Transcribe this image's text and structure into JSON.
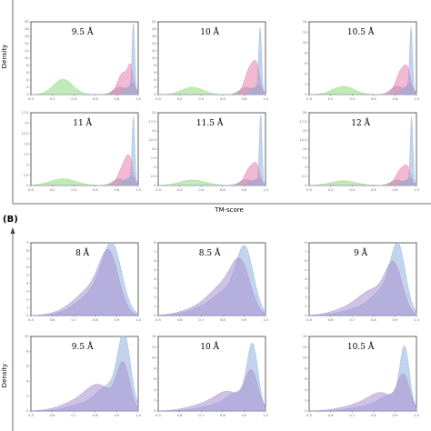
{
  "figure": {
    "section_label": "(B)",
    "xlabel_top": "TM-score",
    "ylabel_top": "Density",
    "ylabel_bottom": "Density"
  },
  "colors": {
    "blue": "#8fb0dc",
    "pink": "#e57fae",
    "green": "#8ed97a",
    "gray": "#999999",
    "purple": "#a98fd0"
  },
  "chart_data": [
    {
      "id": "A1",
      "type": "area",
      "title": "9.5 Å",
      "xlim": [
        0,
        1
      ],
      "ylim": [
        0,
        20
      ],
      "x_ticks": [
        "0.0",
        "0.2",
        "0.4",
        "0.6",
        "0.8",
        "1.0"
      ],
      "y_ticks": [
        "0",
        "2",
        "4",
        "6",
        "8",
        "10",
        "12",
        "14",
        "16",
        "18",
        "20"
      ],
      "series": [
        {
          "color": "green",
          "peaks": [
            [
              0.3,
              0.09,
              4.2
            ]
          ]
        },
        {
          "color": "gray",
          "peaks": [
            [
              0.83,
              0.06,
              2.1
            ],
            [
              0.95,
              0.03,
              2.8
            ]
          ]
        },
        {
          "color": "pink",
          "peaks": [
            [
              0.86,
              0.05,
              6.0
            ],
            [
              0.93,
              0.025,
              6.0
            ]
          ]
        },
        {
          "color": "blue",
          "peaks": [
            [
              0.955,
              0.012,
              19.0
            ],
            [
              0.9,
              0.04,
              2.0
            ]
          ]
        }
      ]
    },
    {
      "id": "A2",
      "type": "area",
      "title": "10 Å",
      "xlim": [
        0,
        1
      ],
      "ylim": [
        0,
        20
      ],
      "x_ticks": [
        "0.0",
        "0.2",
        "0.4",
        "0.6",
        "0.8",
        "1.0"
      ],
      "y_ticks": [
        "0",
        "2",
        "4",
        "6",
        "8",
        "10",
        "12",
        "14",
        "16",
        "18",
        "20"
      ],
      "series": [
        {
          "color": "green",
          "peaks": [
            [
              0.32,
              0.1,
              2.0
            ]
          ]
        },
        {
          "color": "gray",
          "peaks": [
            [
              0.82,
              0.06,
              2.0
            ],
            [
              0.94,
              0.03,
              2.4
            ]
          ]
        },
        {
          "color": "pink",
          "peaks": [
            [
              0.86,
              0.05,
              7.5
            ],
            [
              0.92,
              0.03,
              5.0
            ]
          ]
        },
        {
          "color": "blue",
          "peaks": [
            [
              0.95,
              0.013,
              17.5
            ],
            [
              0.9,
              0.04,
              2.0
            ]
          ]
        }
      ]
    },
    {
      "id": "A3",
      "type": "area",
      "title": "10.5 Å",
      "xlim": [
        0,
        1
      ],
      "ylim": [
        0,
        14
      ],
      "x_ticks": [
        "0.0",
        "0.2",
        "0.4",
        "0.6",
        "0.8",
        "1.0"
      ],
      "y_ticks": [
        "0",
        "2",
        "4",
        "6",
        "8",
        "10",
        "12",
        "14"
      ],
      "series": [
        {
          "color": "green",
          "peaks": [
            [
              0.32,
              0.1,
              1.6
            ]
          ]
        },
        {
          "color": "gray",
          "peaks": [
            [
              0.82,
              0.06,
              1.6
            ],
            [
              0.94,
              0.03,
              2.0
            ]
          ]
        },
        {
          "color": "pink",
          "peaks": [
            [
              0.86,
              0.05,
              4.6
            ],
            [
              0.92,
              0.03,
              3.0
            ]
          ]
        },
        {
          "color": "blue",
          "peaks": [
            [
              0.95,
              0.013,
              12.3
            ],
            [
              0.9,
              0.04,
              1.5
            ]
          ]
        }
      ]
    },
    {
      "id": "A4",
      "type": "area",
      "title": "11 Å",
      "xlim": [
        0,
        1
      ],
      "ylim": [
        0,
        17.5
      ],
      "x_ticks": [
        "0.0",
        "0.2",
        "0.4",
        "0.6",
        "0.8",
        "1.0"
      ],
      "y_ticks": [
        "0",
        "2.5",
        "5",
        "7.5",
        "10",
        "12.5",
        "15",
        "17.5"
      ],
      "series": [
        {
          "color": "green",
          "peaks": [
            [
              0.3,
              0.12,
              1.6
            ]
          ]
        },
        {
          "color": "gray",
          "peaks": [
            [
              0.82,
              0.06,
              1.5
            ],
            [
              0.94,
              0.03,
              2.0
            ]
          ]
        },
        {
          "color": "pink",
          "peaks": [
            [
              0.87,
              0.05,
              5.0
            ],
            [
              0.92,
              0.03,
              4.0
            ]
          ]
        },
        {
          "color": "blue",
          "peaks": [
            [
              0.955,
              0.012,
              16.0
            ],
            [
              0.9,
              0.04,
              1.8
            ]
          ]
        }
      ]
    },
    {
      "id": "A5",
      "type": "area",
      "title": "11.5 Å",
      "xlim": [
        0,
        1
      ],
      "ylim": [
        0,
        20
      ],
      "x_ticks": [
        "0.0",
        "0.2",
        "0.4",
        "0.6",
        "0.8",
        "1.0"
      ],
      "y_ticks": [
        "0",
        "2.5",
        "5",
        "7.5",
        "10",
        "12.5",
        "15",
        "17.5",
        "20"
      ],
      "series": [
        {
          "color": "green",
          "peaks": [
            [
              0.32,
              0.12,
              1.5
            ]
          ]
        },
        {
          "color": "gray",
          "peaks": [
            [
              0.82,
              0.06,
              1.6
            ],
            [
              0.94,
              0.03,
              1.8
            ]
          ]
        },
        {
          "color": "pink",
          "peaks": [
            [
              0.86,
              0.05,
              5.0
            ],
            [
              0.92,
              0.03,
              3.5
            ]
          ]
        },
        {
          "color": "blue",
          "peaks": [
            [
              0.955,
              0.012,
              19.0
            ],
            [
              0.9,
              0.04,
              1.5
            ]
          ]
        }
      ]
    },
    {
      "id": "A6",
      "type": "area",
      "title": "12 Å",
      "xlim": [
        0,
        1
      ],
      "ylim": [
        0,
        20
      ],
      "x_ticks": [
        "0.0",
        "0.2",
        "0.4",
        "0.6",
        "0.8",
        "1.0"
      ],
      "y_ticks": [
        "0",
        "2.5",
        "5",
        "7.5",
        "10",
        "12.5",
        "15",
        "17.5",
        "20"
      ],
      "series": [
        {
          "color": "green",
          "peaks": [
            [
              0.32,
              0.12,
              1.3
            ]
          ]
        },
        {
          "color": "gray",
          "peaks": [
            [
              0.82,
              0.06,
              1.5
            ],
            [
              0.94,
              0.03,
              1.7
            ]
          ]
        },
        {
          "color": "pink",
          "peaks": [
            [
              0.86,
              0.05,
              4.5
            ],
            [
              0.92,
              0.03,
              3.0
            ]
          ]
        },
        {
          "color": "blue",
          "peaks": [
            [
              0.955,
              0.012,
              18.5
            ],
            [
              0.9,
              0.04,
              1.4
            ]
          ]
        }
      ]
    },
    {
      "id": "B1",
      "type": "area",
      "title": "8 Å",
      "xlim": [
        0.5,
        1
      ],
      "ylim": [
        0,
        9
      ],
      "x_ticks": [
        "0.5",
        "0.6",
        "0.7",
        "0.8",
        "0.9",
        "1.0"
      ],
      "y_ticks": [
        "0",
        "1",
        "2",
        "3",
        "4",
        "5",
        "6",
        "7",
        "8",
        "9"
      ],
      "series": [
        {
          "color": "blue",
          "peaks": [
            [
              0.88,
              0.045,
              8.0
            ],
            [
              0.8,
              0.06,
              2.3
            ],
            [
              0.72,
              0.07,
              0.8
            ]
          ]
        },
        {
          "color": "purple",
          "peaks": [
            [
              0.865,
              0.045,
              7.1
            ],
            [
              0.78,
              0.06,
              2.5
            ],
            [
              0.7,
              0.07,
              0.9
            ]
          ]
        }
      ]
    },
    {
      "id": "B2",
      "type": "area",
      "title": "8.5 Å",
      "xlim": [
        0.5,
        1
      ],
      "ylim": [
        0,
        8
      ],
      "x_ticks": [
        "0.5",
        "0.6",
        "0.7",
        "0.8",
        "0.9",
        "1.0"
      ],
      "y_ticks": [
        "0",
        "1",
        "2",
        "3",
        "4",
        "5",
        "6",
        "7",
        "8"
      ],
      "series": [
        {
          "color": "blue",
          "peaks": [
            [
              0.905,
              0.04,
              6.8
            ],
            [
              0.82,
              0.06,
              2.2
            ],
            [
              0.72,
              0.08,
              0.8
            ]
          ]
        },
        {
          "color": "purple",
          "peaks": [
            [
              0.885,
              0.045,
              5.2
            ],
            [
              0.8,
              0.06,
              2.6
            ],
            [
              0.7,
              0.08,
              0.9
            ]
          ]
        }
      ]
    },
    {
      "id": "B3",
      "type": "area",
      "title": "9 Å",
      "xlim": [
        0.5,
        1
      ],
      "ylim": [
        0,
        8
      ],
      "x_ticks": [
        "0.5",
        "0.6",
        "0.7",
        "0.8",
        "0.9",
        "1.0"
      ],
      "y_ticks": [
        "0",
        "1",
        "2",
        "3",
        "4",
        "5",
        "6",
        "7",
        "8"
      ],
      "series": [
        {
          "color": "blue",
          "peaks": [
            [
              0.915,
              0.035,
              7.2
            ],
            [
              0.84,
              0.05,
              2.2
            ],
            [
              0.74,
              0.08,
              0.8
            ]
          ]
        },
        {
          "color": "purple",
          "peaks": [
            [
              0.895,
              0.04,
              5.2
            ],
            [
              0.8,
              0.06,
              2.3
            ],
            [
              0.7,
              0.08,
              0.9
            ]
          ]
        }
      ]
    },
    {
      "id": "B4",
      "type": "area",
      "title": "9.5 Å",
      "xlim": [
        0.5,
        1
      ],
      "ylim": [
        0,
        10
      ],
      "x_ticks": [
        "0.5",
        "0.6",
        "0.7",
        "0.8",
        "0.9",
        "1.0"
      ],
      "y_ticks": [
        "0",
        "2",
        "4",
        "6",
        "8",
        "10"
      ],
      "series": [
        {
          "color": "blue",
          "peaks": [
            [
              0.935,
              0.03,
              9.5
            ],
            [
              0.86,
              0.05,
              2.8
            ],
            [
              0.76,
              0.08,
              1.0
            ]
          ]
        },
        {
          "color": "purple",
          "peaks": [
            [
              0.93,
              0.03,
              6.0
            ],
            [
              0.82,
              0.06,
              3.0
            ],
            [
              0.72,
              0.08,
              1.2
            ]
          ]
        }
      ]
    },
    {
      "id": "B5",
      "type": "area",
      "title": "10 Å",
      "xlim": [
        0.5,
        1
      ],
      "ylim": [
        0,
        14
      ],
      "x_ticks": [
        "0.5",
        "0.6",
        "0.7",
        "0.8",
        "0.9",
        "1.0"
      ],
      "y_ticks": [
        "0",
        "2",
        "4",
        "6",
        "8",
        "10",
        "12",
        "14"
      ],
      "series": [
        {
          "color": "blue",
          "peaks": [
            [
              0.94,
              0.025,
              11.5
            ],
            [
              0.87,
              0.05,
              3.0
            ],
            [
              0.77,
              0.08,
              1.0
            ]
          ]
        },
        {
          "color": "purple",
          "peaks": [
            [
              0.935,
              0.03,
              7.0
            ],
            [
              0.83,
              0.06,
              3.2
            ],
            [
              0.72,
              0.08,
              1.2
            ]
          ]
        }
      ]
    },
    {
      "id": "B6",
      "type": "area",
      "title": "10.5 Å",
      "xlim": [
        0.5,
        1
      ],
      "ylim": [
        0,
        14
      ],
      "x_ticks": [
        "0.5",
        "0.6",
        "0.7",
        "0.8",
        "0.9",
        "1.0"
      ],
      "y_ticks": [
        "0",
        "2",
        "4",
        "6",
        "8",
        "10",
        "12",
        "14"
      ],
      "series": [
        {
          "color": "blue",
          "peaks": [
            [
              0.945,
              0.022,
              11.0
            ],
            [
              0.88,
              0.05,
              2.5
            ],
            [
              0.78,
              0.08,
              0.9
            ]
          ]
        },
        {
          "color": "purple",
          "peaks": [
            [
              0.94,
              0.028,
              6.2
            ],
            [
              0.84,
              0.06,
              3.0
            ],
            [
              0.73,
              0.08,
              1.1
            ]
          ]
        }
      ]
    }
  ]
}
